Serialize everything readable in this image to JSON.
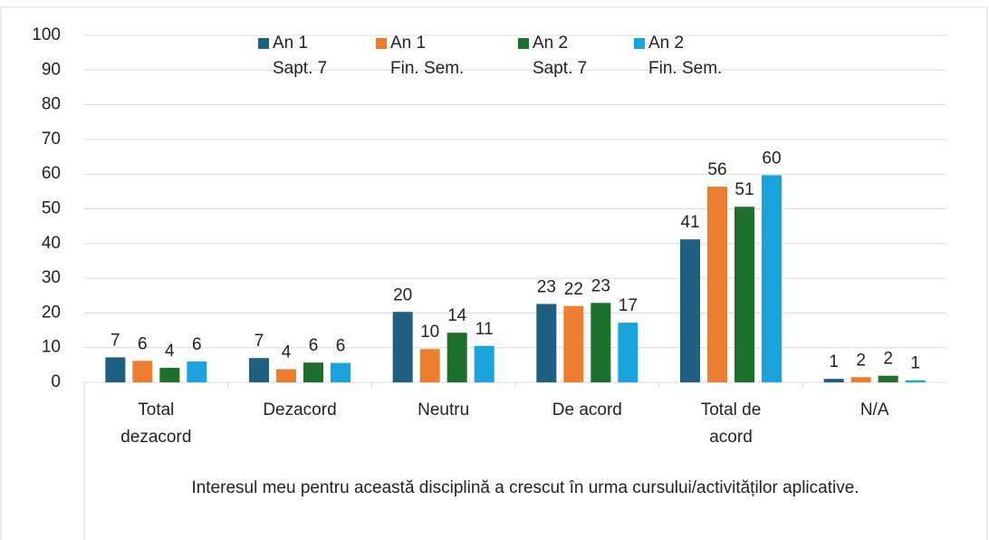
{
  "chart_data": {
    "type": "bar",
    "xlabel": "Interesul meu pentru această disciplină a crescut în urma cursului/activităților aplicative.",
    "categories": [
      "Total\ndezacord",
      "Dezacord",
      "Neutru",
      "De acord",
      "Total de\nacord",
      "N/A"
    ],
    "series": [
      {
        "name": "An 1\nSapt. 7",
        "color": "#1f5f82",
        "values": [
          7.2,
          7.0,
          20.3,
          22.6,
          41.2,
          1.0
        ],
        "value_labels": [
          "7",
          "7",
          "20",
          "23",
          "41",
          "1"
        ]
      },
      {
        "name": "An 1\nFin. Sem.",
        "color": "#ed7d31",
        "values": [
          6.2,
          3.8,
          9.6,
          22.0,
          56.4,
          1.5
        ],
        "value_labels": [
          "6",
          "4",
          "10",
          "22",
          "56",
          "2"
        ]
      },
      {
        "name": "An 2\nSapt. 7",
        "color": "#1e6e2e",
        "values": [
          4.2,
          5.7,
          14.3,
          22.9,
          50.6,
          1.9
        ],
        "value_labels": [
          "4",
          "6",
          "14",
          "23",
          "51",
          "2"
        ]
      },
      {
        "name": "An 2\nFin. Sem.",
        "color": "#1aa3dc",
        "values": [
          6.0,
          5.6,
          10.5,
          17.2,
          59.7,
          0.6
        ],
        "value_labels": [
          "6",
          "6",
          "11",
          "17",
          "60",
          "1"
        ]
      }
    ],
    "ylim": [
      0,
      100
    ],
    "yticks": [
      0,
      10,
      20,
      30,
      40,
      50,
      60,
      70,
      80,
      90,
      100
    ],
    "grid": true,
    "legend": "top"
  }
}
